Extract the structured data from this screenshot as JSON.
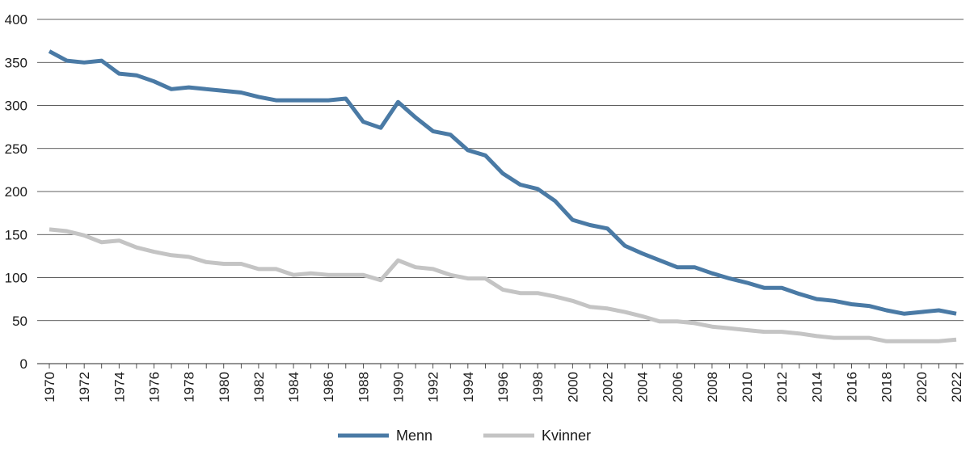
{
  "chart_data": {
    "type": "line",
    "title": "",
    "xlabel": "",
    "ylabel": "",
    "ylim": [
      0,
      400
    ],
    "yticks": [
      0,
      50,
      100,
      150,
      200,
      250,
      300,
      350,
      400
    ],
    "x": [
      1970,
      1971,
      1972,
      1973,
      1974,
      1975,
      1976,
      1977,
      1978,
      1979,
      1980,
      1981,
      1982,
      1983,
      1984,
      1985,
      1986,
      1987,
      1988,
      1989,
      1990,
      1991,
      1992,
      1993,
      1994,
      1995,
      1996,
      1997,
      1998,
      1999,
      2000,
      2001,
      2002,
      2003,
      2004,
      2005,
      2006,
      2007,
      2008,
      2009,
      2010,
      2011,
      2012,
      2013,
      2014,
      2015,
      2016,
      2017,
      2018,
      2019,
      2020,
      2021,
      2022
    ],
    "xtick_labels": [
      "1970",
      "1972",
      "1974",
      "1976",
      "1978",
      "1980",
      "1982",
      "1984",
      "1986",
      "1988",
      "1990",
      "1992",
      "1994",
      "1996",
      "1998",
      "2000",
      "2002",
      "2004",
      "2006",
      "2008",
      "2010",
      "2012",
      "2014",
      "2016",
      "2018",
      "2020",
      "2022"
    ],
    "grid": true,
    "legend_position": "bottom-center",
    "series": [
      {
        "name": "Menn",
        "color": "#4a7aa5",
        "values": [
          363,
          352,
          350,
          352,
          337,
          335,
          328,
          319,
          321,
          319,
          317,
          315,
          310,
          306,
          306,
          306,
          306,
          308,
          281,
          274,
          304,
          286,
          270,
          266,
          248,
          242,
          221,
          208,
          203,
          189,
          167,
          161,
          157,
          137,
          128,
          120,
          112,
          112,
          105,
          99,
          94,
          88,
          88,
          81,
          75,
          73,
          69,
          67,
          62,
          58,
          60,
          62,
          58
        ]
      },
      {
        "name": "Kvinner",
        "color": "#c4c4c4",
        "values": [
          156,
          154,
          149,
          141,
          143,
          135,
          130,
          126,
          124,
          118,
          116,
          116,
          110,
          110,
          103,
          105,
          103,
          103,
          103,
          97,
          120,
          112,
          110,
          103,
          99,
          99,
          86,
          82,
          82,
          78,
          73,
          66,
          64,
          60,
          55,
          49,
          49,
          47,
          43,
          41,
          39,
          37,
          37,
          35,
          32,
          30,
          30,
          30,
          26,
          26,
          26,
          26,
          28
        ]
      }
    ]
  }
}
